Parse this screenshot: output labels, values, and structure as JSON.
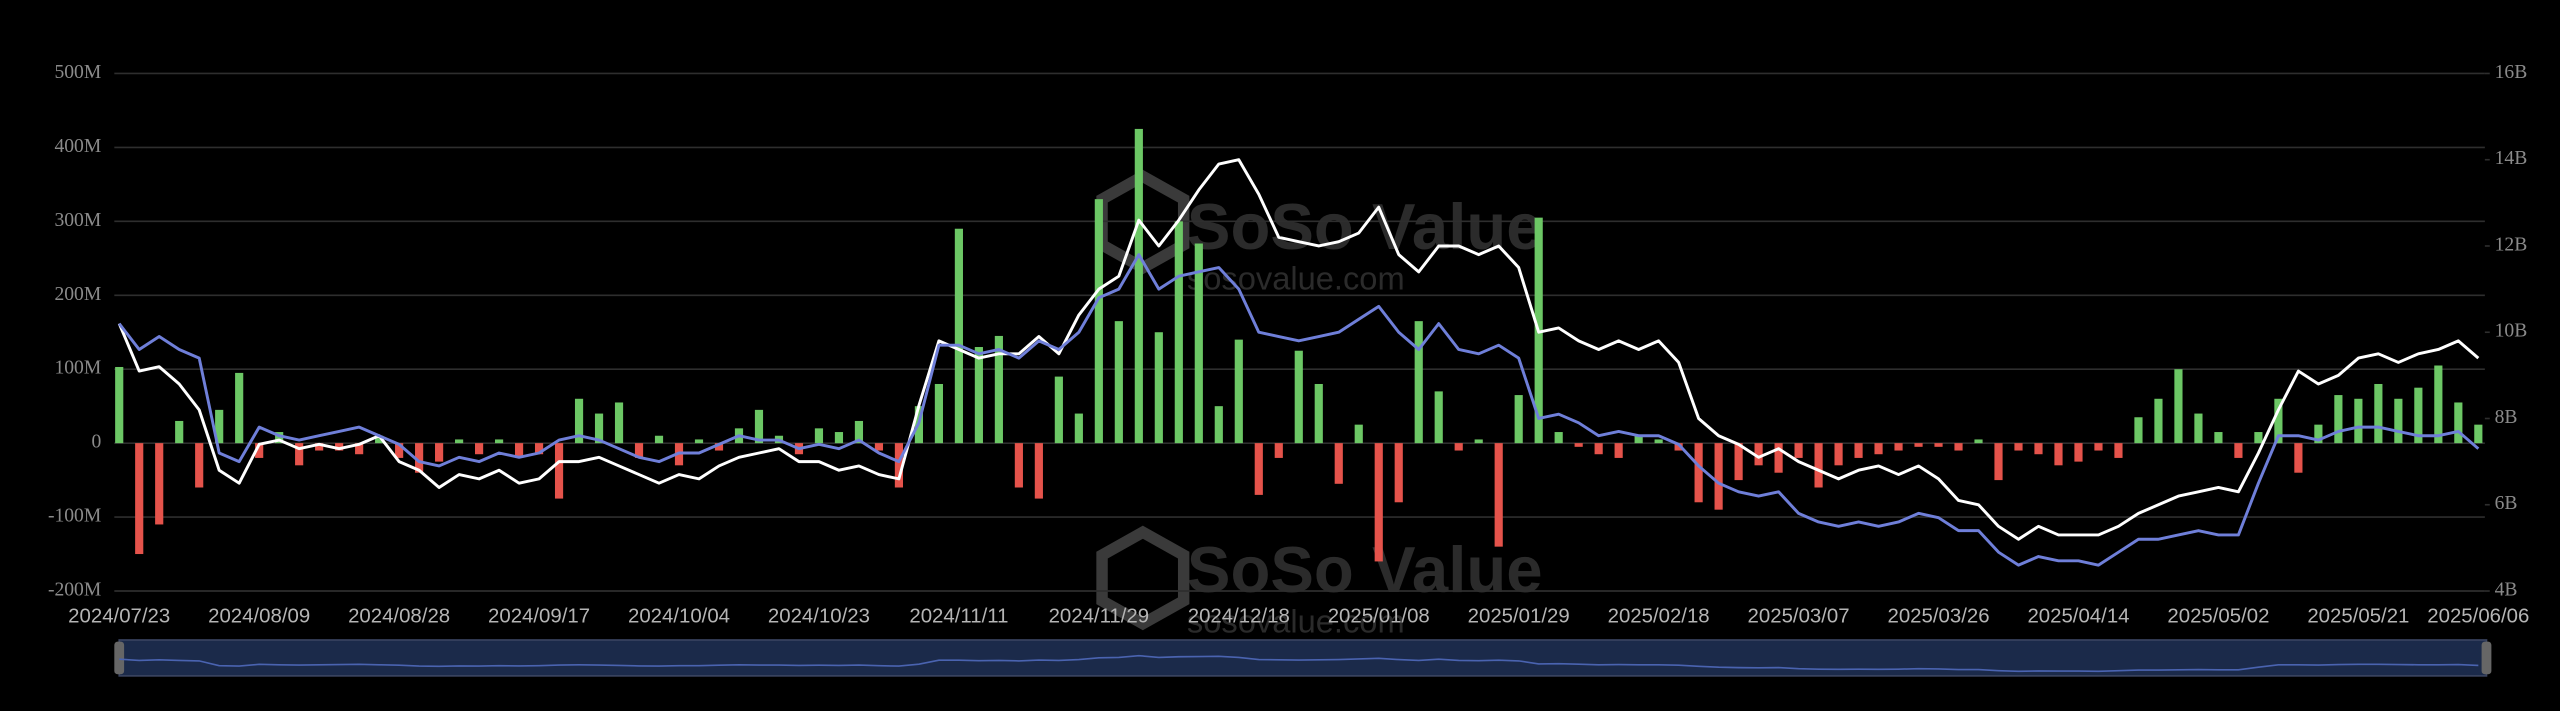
{
  "chart_data": {
    "type": "bar-line",
    "watermark": [
      "SoSo Value",
      "sosovalue.com"
    ],
    "categories": [
      "2024/07/23",
      null,
      null,
      null,
      null,
      null,
      null,
      "2024/08/09",
      null,
      null,
      null,
      null,
      null,
      null,
      "2024/08/28",
      null,
      null,
      null,
      null,
      null,
      null,
      "2024/09/17",
      null,
      null,
      null,
      null,
      null,
      null,
      "2024/10/04",
      null,
      null,
      null,
      null,
      null,
      null,
      "2024/10/23",
      null,
      null,
      null,
      null,
      null,
      null,
      "2024/11/11",
      null,
      null,
      null,
      null,
      null,
      null,
      "2024/11/29",
      null,
      null,
      null,
      null,
      null,
      null,
      "2024/12/18",
      null,
      null,
      null,
      null,
      null,
      null,
      "2025/01/08",
      null,
      null,
      null,
      null,
      null,
      null,
      "2025/01/29",
      null,
      null,
      null,
      null,
      null,
      null,
      "2025/02/18",
      null,
      null,
      null,
      null,
      null,
      null,
      "2025/03/07",
      null,
      null,
      null,
      null,
      null,
      null,
      "2025/03/26",
      null,
      null,
      null,
      null,
      null,
      null,
      "2025/04/14",
      null,
      null,
      null,
      null,
      null,
      null,
      "2025/05/02",
      null,
      null,
      null,
      null,
      null,
      null,
      "2025/05/21",
      null,
      null,
      null,
      null,
      null,
      "2025/06/06"
    ],
    "series": [
      {
        "type": "bar",
        "color": "#6cc765",
        "negative_color": "#e5534b",
        "values": [
          103,
          -150,
          -110,
          30,
          -60,
          45,
          95,
          -20,
          15,
          -30,
          -10,
          -10,
          -15,
          10,
          -20,
          -40,
          -25,
          5,
          -15,
          5,
          -20,
          -15,
          -75,
          60,
          40,
          55,
          -20,
          10,
          -30,
          5,
          -10,
          20,
          45,
          10,
          -15,
          20,
          15,
          30,
          -10,
          -60,
          50,
          80,
          290,
          130,
          145,
          -60,
          -75,
          90,
          40,
          330,
          165,
          425,
          150,
          300,
          270,
          50,
          140,
          -70,
          -20,
          125,
          80,
          -55,
          25,
          -160,
          -80,
          165,
          70,
          -10,
          5,
          -140,
          65,
          305,
          15,
          -5,
          -15,
          -20,
          10,
          5,
          -10,
          -80,
          -90,
          -50,
          -30,
          -40,
          -20,
          -60,
          -30,
          -20,
          -15,
          -10,
          -5,
          -5,
          -10,
          5,
          -50,
          -10,
          -15,
          -30,
          -25,
          -10,
          -20,
          35,
          60,
          100,
          40,
          15,
          -20,
          15,
          60,
          -40,
          25,
          65,
          60,
          80,
          60,
          75,
          105,
          55,
          25
        ]
      },
      {
        "type": "line",
        "axis": "y2",
        "color": "#ffffff",
        "values": [
          10.2,
          9.1,
          9.2,
          8.8,
          8.2,
          6.8,
          6.5,
          7.4,
          7.5,
          7.3,
          7.4,
          7.3,
          7.4,
          7.6,
          7.0,
          6.8,
          6.4,
          6.7,
          6.6,
          6.8,
          6.5,
          6.6,
          7.0,
          7.0,
          7.1,
          6.9,
          6.7,
          6.5,
          6.7,
          6.6,
          6.9,
          7.1,
          7.2,
          7.3,
          7.0,
          7.0,
          6.8,
          6.9,
          6.7,
          6.6,
          8.3,
          9.8,
          9.6,
          9.4,
          9.5,
          9.5,
          9.9,
          9.5,
          10.4,
          11.0,
          11.3,
          12.6,
          12.0,
          12.6,
          13.3,
          13.9,
          14.0,
          13.2,
          12.2,
          12.1,
          12.0,
          12.1,
          12.3,
          12.9,
          11.8,
          11.4,
          12.0,
          12.0,
          11.8,
          12.0,
          11.5,
          10.0,
          10.1,
          9.8,
          9.6,
          9.8,
          9.6,
          9.8,
          9.3,
          8.0,
          7.6,
          7.4,
          7.1,
          7.3,
          7.0,
          6.8,
          6.6,
          6.8,
          6.9,
          6.7,
          6.9,
          6.6,
          6.1,
          6.0,
          5.5,
          5.2,
          5.5,
          5.3,
          5.3,
          5.3,
          5.5,
          5.8,
          6.0,
          6.2,
          6.3,
          6.4,
          6.3,
          7.2,
          8.2,
          9.1,
          8.8,
          9.0,
          9.4,
          9.5,
          9.3,
          9.5,
          9.6,
          9.8,
          9.4
        ]
      },
      {
        "type": "line",
        "axis": "y2",
        "color": "#6f7fd9",
        "values": [
          10.2,
          9.6,
          9.9,
          9.6,
          9.4,
          7.2,
          7.0,
          7.8,
          7.6,
          7.5,
          7.6,
          7.7,
          7.8,
          7.6,
          7.4,
          7.0,
          6.9,
          7.1,
          7.0,
          7.2,
          7.1,
          7.2,
          7.5,
          7.6,
          7.5,
          7.3,
          7.1,
          7.0,
          7.2,
          7.2,
          7.4,
          7.6,
          7.5,
          7.5,
          7.3,
          7.4,
          7.3,
          7.5,
          7.2,
          7.0,
          7.9,
          9.7,
          9.7,
          9.5,
          9.6,
          9.4,
          9.8,
          9.6,
          10.0,
          10.8,
          11.0,
          11.8,
          11.0,
          11.3,
          11.4,
          11.5,
          11.0,
          10.0,
          9.9,
          9.8,
          9.9,
          10.0,
          10.3,
          10.6,
          10.0,
          9.6,
          10.2,
          9.6,
          9.5,
          9.7,
          9.4,
          8.0,
          8.1,
          7.9,
          7.6,
          7.7,
          7.6,
          7.6,
          7.4,
          6.9,
          6.5,
          6.3,
          6.2,
          6.3,
          5.8,
          5.6,
          5.5,
          5.6,
          5.5,
          5.6,
          5.8,
          5.7,
          5.4,
          5.4,
          4.9,
          4.6,
          4.8,
          4.7,
          4.7,
          4.6,
          4.9,
          5.2,
          5.2,
          5.3,
          5.4,
          5.3,
          5.3,
          6.5,
          7.6,
          7.6,
          7.5,
          7.7,
          7.8,
          7.8,
          7.7,
          7.6,
          7.6,
          7.7,
          7.3
        ]
      }
    ],
    "ylim": [
      -200,
      500
    ],
    "yticks": [
      {
        "value": -200,
        "label": "-200M"
      },
      {
        "value": -100,
        "label": "-100M"
      },
      0,
      {
        "value": 100,
        "label": "100M"
      },
      {
        "value": 200,
        "label": "200M"
      },
      {
        "value": 300,
        "label": "300M"
      },
      {
        "value": 400,
        "label": "400M"
      },
      {
        "value": 500,
        "label": "500M"
      }
    ],
    "y2lim": [
      4,
      16
    ],
    "y2ticks": [
      {
        "value": 4,
        "label": "4B"
      },
      {
        "value": 6,
        "label": "6B"
      },
      {
        "value": 8,
        "label": "8B"
      },
      {
        "value": 10,
        "label": "10B"
      },
      {
        "value": 12,
        "label": "12B"
      },
      {
        "value": 14,
        "label": "14B"
      },
      {
        "value": 16,
        "label": "16B"
      }
    ],
    "grid": true
  }
}
